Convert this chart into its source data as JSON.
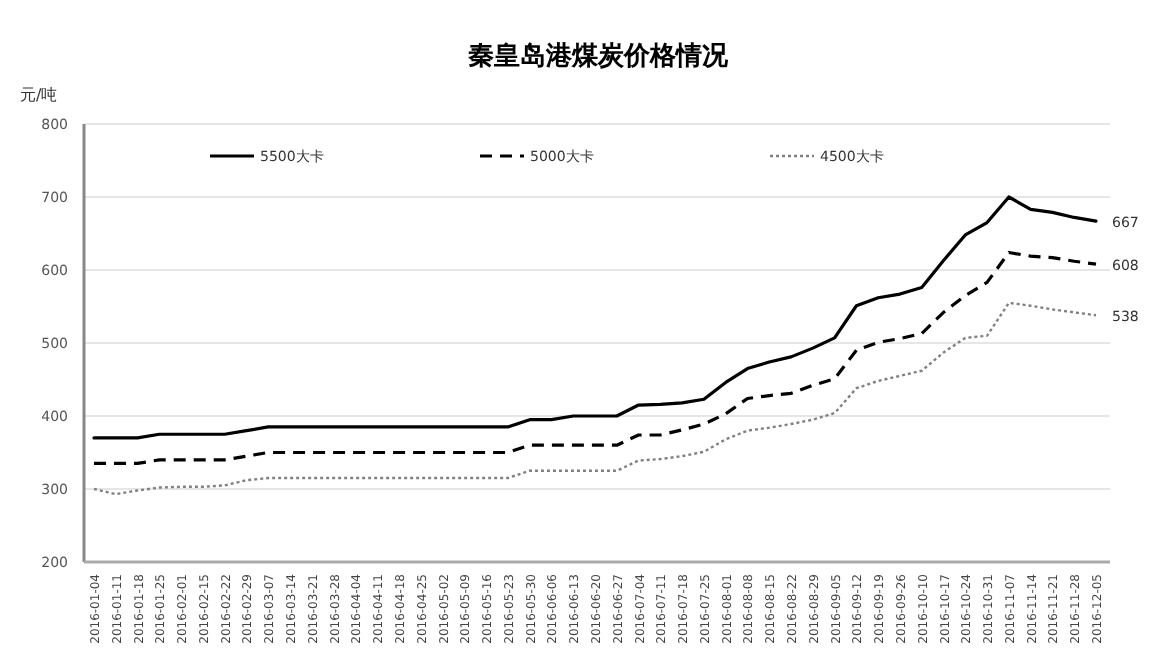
{
  "chart_data": {
    "type": "line",
    "title": "秦皇岛港煤炭价格情况",
    "ylabel": "元/吨",
    "categories": [
      "2016-01-04",
      "2016-01-11",
      "2016-01-18",
      "2016-01-25",
      "2016-02-01",
      "2016-02-15",
      "2016-02-22",
      "2016-02-29",
      "2016-03-07",
      "2016-03-14",
      "2016-03-21",
      "2016-03-28",
      "2016-04-04",
      "2016-04-11",
      "2016-04-18",
      "2016-04-25",
      "2016-05-02",
      "2016-05-09",
      "2016-05-16",
      "2016-05-23",
      "2016-05-30",
      "2016-06-06",
      "2016-06-13",
      "2016-06-20",
      "2016-06-27",
      "2016-07-04",
      "2016-07-11",
      "2016-07-18",
      "2016-07-25",
      "2016-08-01",
      "2016-08-08",
      "2016-08-15",
      "2016-08-22",
      "2016-08-29",
      "2016-09-05",
      "2016-09-12",
      "2016-09-19",
      "2016-09-26",
      "2016-10-10",
      "2016-10-17",
      "2016-10-24",
      "2016-10-31",
      "2016-11-07",
      "2016-11-14",
      "2016-11-21",
      "2016-11-28",
      "2016-12-05"
    ],
    "series": [
      {
        "name": "5500大卡",
        "color": "#000000",
        "line_style": "solid",
        "values": [
          370,
          370,
          370,
          375,
          375,
          375,
          375,
          380,
          385,
          385,
          385,
          385,
          385,
          385,
          385,
          385,
          385,
          385,
          385,
          385,
          395,
          395,
          400,
          400,
          400,
          415,
          416,
          418,
          423,
          446,
          465,
          474,
          481,
          493,
          507,
          551,
          562,
          567,
          576,
          613,
          648,
          665,
          700,
          683,
          679,
          672,
          667
        ],
        "value_labels": [
          null,
          null,
          null,
          null,
          null,
          null,
          null,
          null,
          null,
          null,
          null,
          null,
          null,
          null,
          null,
          null,
          null,
          null,
          null,
          null,
          null,
          null,
          null,
          null,
          null,
          null,
          null,
          null,
          null,
          null,
          null,
          null,
          null,
          null,
          null,
          null,
          null,
          null,
          null,
          null,
          null,
          null,
          null,
          null,
          null,
          null,
          "667"
        ]
      },
      {
        "name": "5000大卡",
        "color": "#000000",
        "line_style": "dashed",
        "values": [
          335,
          335,
          335,
          340,
          340,
          340,
          340,
          345,
          350,
          350,
          350,
          350,
          350,
          350,
          350,
          350,
          350,
          350,
          350,
          350,
          360,
          360,
          360,
          360,
          360,
          374,
          374,
          381,
          389,
          403,
          424,
          428,
          431,
          442,
          451,
          490,
          501,
          506,
          513,
          542,
          565,
          583,
          624,
          619,
          617,
          612,
          608
        ],
        "value_labels": [
          null,
          null,
          null,
          null,
          null,
          null,
          null,
          null,
          null,
          null,
          null,
          null,
          null,
          null,
          null,
          null,
          null,
          null,
          null,
          null,
          null,
          null,
          null,
          null,
          null,
          null,
          null,
          null,
          null,
          null,
          null,
          null,
          null,
          null,
          null,
          null,
          null,
          null,
          null,
          null,
          null,
          null,
          null,
          null,
          null,
          null,
          "608"
        ]
      },
      {
        "name": "4500大卡",
        "color": "#808080",
        "line_style": "dotted",
        "values": [
          300,
          293,
          298,
          302,
          303,
          303,
          305,
          312,
          315,
          315,
          315,
          315,
          315,
          315,
          315,
          315,
          315,
          315,
          315,
          315,
          325,
          325,
          325,
          325,
          325,
          339,
          341,
          345,
          351,
          368,
          380,
          384,
          389,
          395,
          404,
          438,
          448,
          455,
          462,
          487,
          507,
          510,
          555,
          551,
          546,
          542,
          538
        ],
        "value_labels": [
          null,
          null,
          null,
          null,
          null,
          null,
          null,
          null,
          null,
          null,
          null,
          null,
          null,
          null,
          null,
          null,
          null,
          null,
          null,
          null,
          null,
          null,
          null,
          null,
          null,
          null,
          null,
          null,
          null,
          null,
          null,
          null,
          null,
          null,
          null,
          null,
          null,
          null,
          null,
          null,
          null,
          null,
          null,
          null,
          null,
          null,
          "538"
        ]
      }
    ],
    "ylim": [
      200,
      800
    ],
    "yticks": [
      200,
      300,
      400,
      500,
      600,
      700,
      800
    ],
    "grid": "y",
    "legend": "top"
  }
}
